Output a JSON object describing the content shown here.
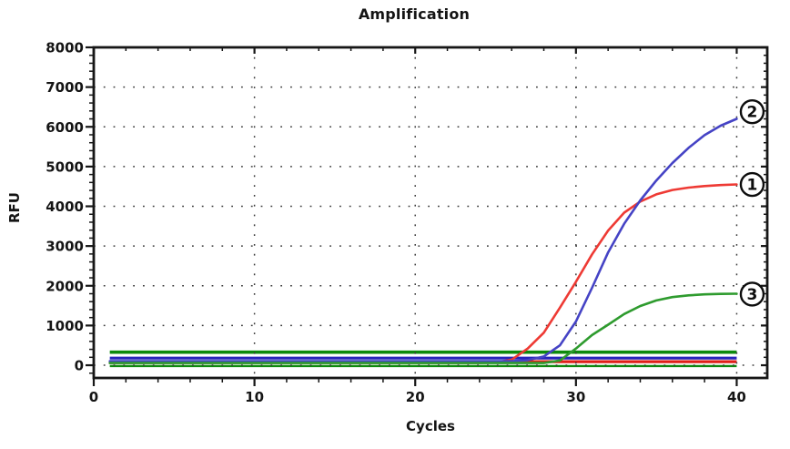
{
  "chart_data": {
    "type": "line",
    "title": "Amplification",
    "xlabel": "Cycles",
    "ylabel": "RFU",
    "xlim": [
      0,
      41.9
    ],
    "ylim": [
      -320,
      8000
    ],
    "x_major_ticks": [
      0,
      10,
      20,
      30,
      40
    ],
    "x_tick_labels": [
      "0",
      "10",
      "20",
      "30",
      "40"
    ],
    "x_minor_step": 2,
    "y_major_ticks": [
      0,
      1000,
      2000,
      3000,
      4000,
      5000,
      6000,
      7000,
      8000
    ],
    "y_tick_labels": [
      "0",
      "1000",
      "2000",
      "3000",
      "4000",
      "5000",
      "6000",
      "7000",
      "8000"
    ],
    "y_minor_step": 200,
    "grid": "dotted-at-major-ticks",
    "legend": "none",
    "plot_border_color": "#161616",
    "grid_color": "#3d3d3d",
    "x": [
      1,
      2,
      3,
      4,
      5,
      6,
      7,
      8,
      9,
      10,
      11,
      12,
      13,
      14,
      15,
      16,
      17,
      18,
      19,
      20,
      21,
      22,
      23,
      24,
      25,
      26,
      27,
      28,
      29,
      30,
      31,
      32,
      33,
      34,
      35,
      36,
      37,
      38,
      39,
      40
    ],
    "series": [
      {
        "name": "sample-1",
        "label": "1",
        "color": "#ee3a34",
        "width": 2.6,
        "label_y": 4550,
        "values": [
          60,
          60,
          60,
          60,
          60,
          60,
          60,
          60,
          60,
          60,
          60,
          60,
          60,
          60,
          60,
          60,
          60,
          60,
          60,
          60,
          60,
          60,
          60,
          60,
          70,
          140,
          420,
          820,
          1450,
          2100,
          2790,
          3390,
          3840,
          4120,
          4300,
          4410,
          4470,
          4510,
          4535,
          4550
        ]
      },
      {
        "name": "sample-2",
        "label": "2",
        "color": "#4543c5",
        "width": 2.6,
        "label_y": 6380,
        "values": [
          105,
          105,
          105,
          105,
          105,
          105,
          105,
          105,
          105,
          105,
          105,
          105,
          105,
          105,
          105,
          105,
          105,
          105,
          105,
          105,
          105,
          105,
          105,
          105,
          105,
          105,
          130,
          220,
          500,
          1100,
          1950,
          2840,
          3560,
          4150,
          4650,
          5090,
          5470,
          5790,
          6030,
          6200
        ]
      },
      {
        "name": "sample-3",
        "label": "3",
        "color": "#2e9b2e",
        "width": 2.6,
        "label_y": 1790,
        "values": [
          55,
          55,
          55,
          55,
          55,
          55,
          55,
          55,
          55,
          55,
          55,
          55,
          55,
          55,
          55,
          55,
          55,
          55,
          55,
          55,
          55,
          55,
          55,
          55,
          55,
          55,
          55,
          55,
          120,
          420,
          760,
          1020,
          1290,
          1490,
          1630,
          1715,
          1760,
          1785,
          1795,
          1800
        ]
      }
    ],
    "flat_lines": [
      {
        "name": "threshold-line-green",
        "color": "#0d8a0d",
        "value": 330,
        "width": 3.6
      },
      {
        "name": "flat-line-blue",
        "color": "#2724bc",
        "value": 180,
        "width": 3.2
      },
      {
        "name": "flat-line-red",
        "color": "#e01f18",
        "value": 90,
        "width": 3.2
      },
      {
        "name": "flat-line-green-low",
        "color": "#0d8a0d",
        "value": -20,
        "width": 2.4
      }
    ]
  }
}
